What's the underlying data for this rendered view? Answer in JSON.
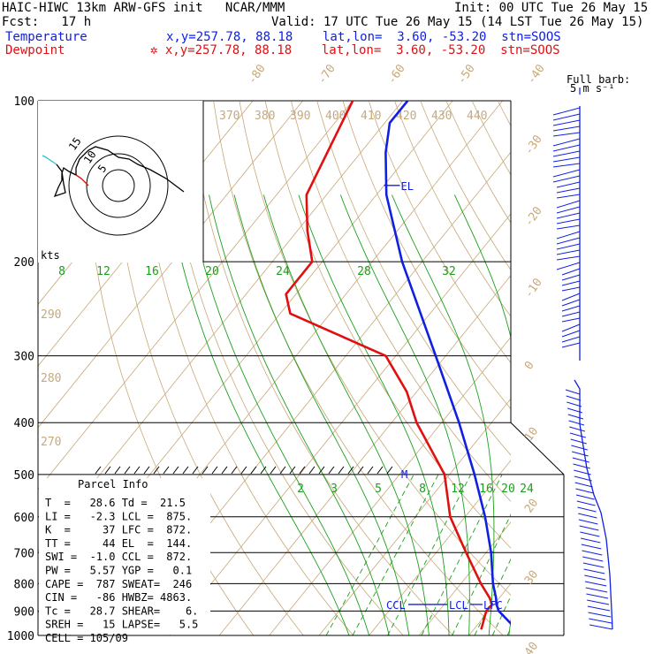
{
  "header": {
    "line1_left": "HAIC-HIWC 13km ARW-GFS init   NCAR/MMM",
    "line1_right": "Init: 00 UTC Tue 26 May 15",
    "line2_left": "Fcst:   17 h",
    "line2_right": "Valid: 17 UTC Tue 26 May 15 (14 LST Tue 26 May 15)",
    "temperature_label": "Temperature",
    "temperature_info": "x,y=257.78, 88.18    lat,lon=  3.60, -53.20  stn=SOOS",
    "dewpoint_label": "Dewpoint",
    "dewpoint_info": "✲ x,y=257.78, 88.18    lat,lon=  3.60, -53.20  stn=SOOS"
  },
  "barb_legend": {
    "line1": "Full barb:",
    "line2": "5 m s⁻¹"
  },
  "hodograph": {
    "units": "kts",
    "ring_labels": [
      "15",
      "10",
      "5"
    ]
  },
  "parcel_info": {
    "title": "Parcel Info",
    "rows": [
      "T  =   28.6 Td =  21.5",
      "LI =   -2.3 LCL =  875.",
      "K  =     37 LFC =  872.",
      "TT =     44 EL  =  144.",
      "SWI =  -1.0 CCL =  872.",
      "PW =   5.57 YGP =   0.1",
      "CAPE =  787 SWEAT=  246",
      "CIN =   -86 HWBZ= 4863.",
      "Tc =   28.7 SHEAR=    6.",
      "SREH =   15 LAPSE=   5.5",
      "CELL = 105/09"
    ]
  },
  "markers": {
    "el": "EL",
    "ccl": "CCL",
    "lcl": "LCL",
    "lfc": "LFC",
    "m": "M"
  },
  "colors": {
    "temperature": "#1020e0",
    "dewpoint": "#e01010",
    "isotherm": "#c8a878",
    "dry_adiabat": "#c8a878",
    "moist_adiabat": "#1aa01a",
    "mixing_ratio": "#1aa01a",
    "isobar": "#000000",
    "wind_barb": "#1020e0",
    "hodograph_trace": "#000000",
    "hodograph_low": "#e01010",
    "hodograph_high": "#30c0d0"
  },
  "chart_data": {
    "type": "line",
    "chart_kind": "skew-T log-P sounding",
    "y_axis": {
      "label": "",
      "scale": "log",
      "ticks": [
        100,
        200,
        300,
        400,
        500,
        600,
        700,
        800,
        900,
        1000
      ],
      "range": [
        1000,
        100
      ]
    },
    "isotherm_labels_C": [
      -80,
      -70,
      -60,
      -50,
      -40,
      -30,
      -20,
      -10,
      0,
      10,
      20,
      30,
      40
    ],
    "theta_labels_top_K": [
      370,
      380,
      390,
      400,
      410,
      420,
      430,
      440
    ],
    "theta_labels_left_K": [
      290,
      280,
      270
    ],
    "theta_e_labels_C": [
      8,
      12,
      16,
      20,
      24,
      28,
      32
    ],
    "mixing_ratio_labels_gkg": [
      2,
      3,
      5,
      8,
      12,
      16,
      20,
      24
    ],
    "series": [
      {
        "name": "Temperature",
        "color": "#1020e0",
        "points": [
          {
            "p": 975,
            "t": 28.6
          },
          {
            "p": 900,
            "t": 22.0
          },
          {
            "p": 875,
            "t": 20.5
          },
          {
            "p": 850,
            "t": 19.3
          },
          {
            "p": 800,
            "t": 16.4
          },
          {
            "p": 700,
            "t": 11.0
          },
          {
            "p": 600,
            "t": 4.0
          },
          {
            "p": 500,
            "t": -5.0
          },
          {
            "p": 400,
            "t": -16.5
          },
          {
            "p": 300,
            "t": -32.0
          },
          {
            "p": 200,
            "t": -54.0
          },
          {
            "p": 150,
            "t": -68.0
          },
          {
            "p": 125,
            "t": -75.0
          },
          {
            "p": 110,
            "t": -79.0
          },
          {
            "p": 100,
            "t": -79.0
          }
        ]
      },
      {
        "name": "Dewpoint",
        "color": "#e01010",
        "points": [
          {
            "p": 975,
            "t": 21.5
          },
          {
            "p": 900,
            "t": 19.5
          },
          {
            "p": 875,
            "t": 19.6
          },
          {
            "p": 850,
            "t": 18.0
          },
          {
            "p": 800,
            "t": 14.0
          },
          {
            "p": 700,
            "t": 6.0
          },
          {
            "p": 600,
            "t": -3.0
          },
          {
            "p": 500,
            "t": -11.0
          },
          {
            "p": 400,
            "t": -25.0
          },
          {
            "p": 350,
            "t": -32.0
          },
          {
            "p": 300,
            "t": -42.0
          },
          {
            "p": 250,
            "t": -68.0
          },
          {
            "p": 230,
            "t": -72.0
          },
          {
            "p": 200,
            "t": -72.0
          },
          {
            "p": 175,
            "t": -78.0
          },
          {
            "p": 150,
            "t": -84.0
          },
          {
            "p": 100,
            "t": -90.0
          }
        ]
      }
    ]
  }
}
